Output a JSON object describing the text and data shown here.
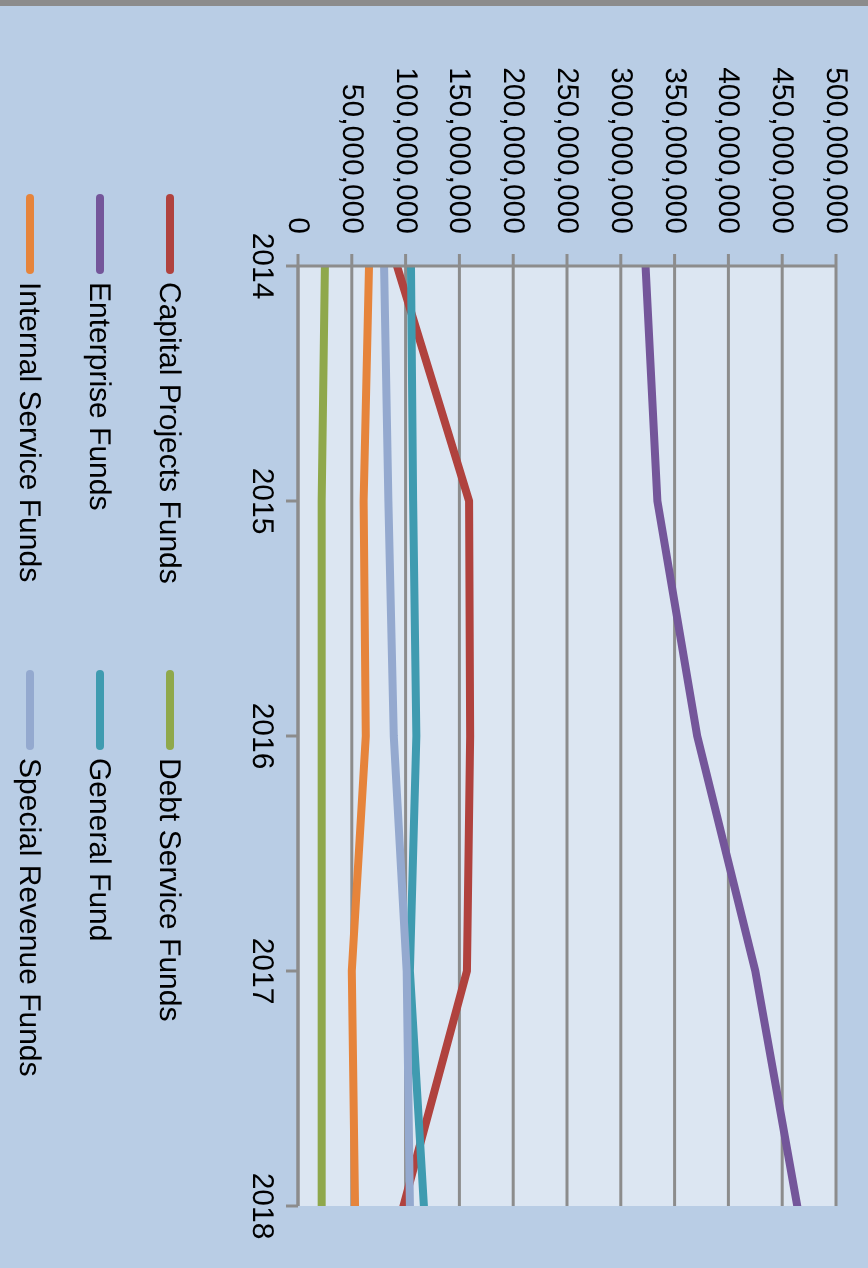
{
  "chart_data": {
    "type": "line",
    "orientation": "horizontal",
    "categories": [
      "2014",
      "2015",
      "2016",
      "2017",
      "2018"
    ],
    "series": [
      {
        "name": "Capital Projects Funds",
        "color": "#b0423e",
        "values": [
          92000000,
          159000000,
          160000000,
          157000000,
          98000000
        ]
      },
      {
        "name": "Debt Service Funds",
        "color": "#8fa84b",
        "values": [
          25000000,
          22000000,
          22000000,
          22000000,
          22000000
        ]
      },
      {
        "name": "Enterprise Funds",
        "color": "#74569a",
        "values": [
          323000000,
          334000000,
          371000000,
          425000000,
          464000000
        ]
      },
      {
        "name": "General Fund",
        "color": "#3f9bb0",
        "values": [
          105000000,
          107000000,
          110000000,
          104000000,
          117000000
        ]
      },
      {
        "name": "Internal Service Funds",
        "color": "#e6843b",
        "values": [
          66000000,
          61000000,
          63000000,
          50000000,
          53000000
        ]
      },
      {
        "name": "Special Revenue Funds",
        "color": "#94a9cf",
        "values": [
          80000000,
          84000000,
          89000000,
          101000000,
          104000000
        ]
      }
    ],
    "xlim": [
      0,
      500000000
    ],
    "xticks": [
      0,
      {
        "value": 50000000,
        "label": "50,000,000"
      },
      {
        "value": 100000000,
        "label": "100,000,000"
      },
      {
        "value": 150000000,
        "label": "150,000,000"
      },
      {
        "value": 200000000,
        "label": "200,000,000"
      },
      {
        "value": 250000000,
        "label": "250,000,000"
      },
      {
        "value": 300000000,
        "label": "300,000,000"
      },
      {
        "value": 350000000,
        "label": "350,000,000"
      },
      {
        "value": 400000000,
        "label": "400,000,000"
      },
      {
        "value": 450000000,
        "label": "450,000,000"
      },
      {
        "value": 500000000,
        "label": "500,000,000"
      }
    ],
    "grid": "x",
    "legend": "left"
  }
}
